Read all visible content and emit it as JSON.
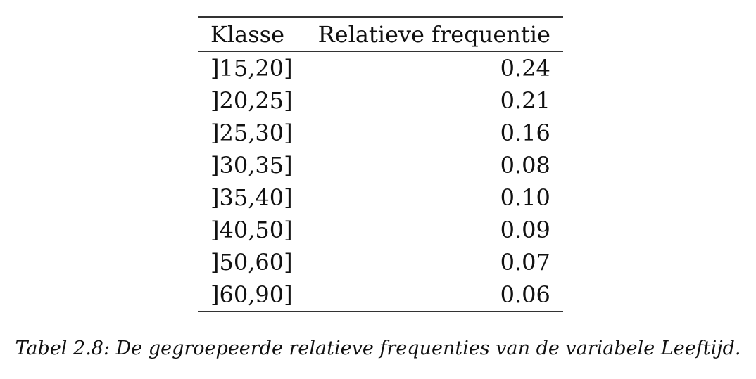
{
  "table": {
    "headers": {
      "class": "Klasse",
      "frequency": "Relatieve frequentie"
    },
    "rows": [
      {
        "class": "]15,20]",
        "frequency": "0.24"
      },
      {
        "class": "]20,25]",
        "frequency": "0.21"
      },
      {
        "class": "]25,30]",
        "frequency": "0.16"
      },
      {
        "class": "]30,35]",
        "frequency": "0.08"
      },
      {
        "class": "]35,40]",
        "frequency": "0.10"
      },
      {
        "class": "]40,50]",
        "frequency": "0.09"
      },
      {
        "class": "]50,60]",
        "frequency": "0.07"
      },
      {
        "class": "]60,90]",
        "frequency": "0.06"
      }
    ]
  },
  "caption": "Tabel 2.8: De gegroepeerde relatieve frequenties van de variabele Leeftijd."
}
